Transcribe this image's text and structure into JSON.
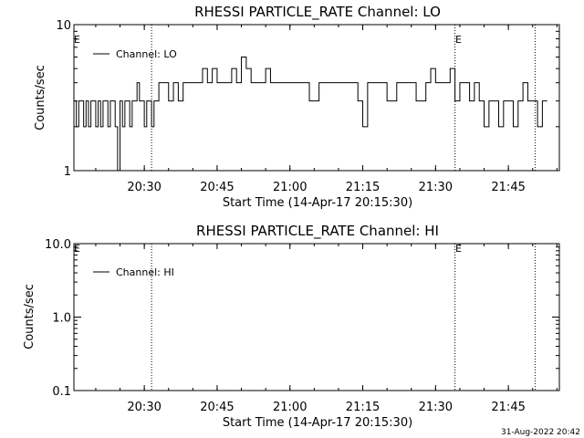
{
  "footer_date": "31-Aug-2022 20:42",
  "chart_data": [
    {
      "type": "line",
      "title": "RHESSI PARTICLE_RATE Channel: LO",
      "xlabel": "Start Time (14-Apr-17 20:15:30)",
      "ylabel": "Counts/sec",
      "y_scale": "log",
      "ylim": [
        1,
        10
      ],
      "y_ticks": [
        "1",
        "10"
      ],
      "xlim": [
        "20:15:30",
        "21:55:30"
      ],
      "x_ticks": [
        "20:30",
        "20:45",
        "21:00",
        "21:15",
        "21:30",
        "21:45"
      ],
      "grid": false,
      "legend": "top-left",
      "series": [
        {
          "name": "Channel: LO",
          "x": [
            "20:15:30",
            "20:16:00",
            "20:16:30",
            "20:17:00",
            "20:17:30",
            "20:18:00",
            "20:18:30",
            "20:19:00",
            "20:19:30",
            "20:20:00",
            "20:20:30",
            "20:21:00",
            "20:21:30",
            "20:22:00",
            "20:22:30",
            "20:23:00",
            "20:23:30",
            "20:24:00",
            "20:24:30",
            "20:25:00",
            "20:25:30",
            "20:26:00",
            "20:26:30",
            "20:27:00",
            "20:27:30",
            "20:28:00",
            "20:28:30",
            "20:29:00",
            "20:29:30",
            "20:30:00",
            "20:30:30",
            "20:31:00",
            "20:31:30",
            "20:32:00",
            "20:33:00",
            "20:34:00",
            "20:35:00",
            "20:36:00",
            "20:37:00",
            "20:38:00",
            "20:39:00",
            "20:40:00",
            "20:41:00",
            "20:42:00",
            "20:43:00",
            "20:44:00",
            "20:45:00",
            "20:46:00",
            "20:47:00",
            "20:48:00",
            "20:49:00",
            "20:50:00",
            "20:51:00",
            "20:52:00",
            "20:53:00",
            "20:54:00",
            "20:55:00",
            "20:56:00",
            "20:57:00",
            "20:58:00",
            "21:00:00",
            "21:02:00",
            "21:04:00",
            "21:06:00",
            "21:08:00",
            "21:10:00",
            "21:12:00",
            "21:14:00",
            "21:15:00",
            "21:16:00",
            "21:18:00",
            "21:20:00",
            "21:22:00",
            "21:24:00",
            "21:26:00",
            "21:28:00",
            "21:29:00",
            "21:30:00",
            "21:31:00",
            "21:32:00",
            "21:33:00",
            "21:34:00",
            "21:35:00",
            "21:36:00",
            "21:37:00",
            "21:38:00",
            "21:39:00",
            "21:40:00",
            "21:41:00",
            "21:42:00",
            "21:43:00",
            "21:44:00",
            "21:45:00",
            "21:46:00",
            "21:47:00",
            "21:48:00",
            "21:49:00",
            "21:50:00",
            "21:51:00",
            "21:52:00",
            "21:53:00"
          ],
          "y": [
            3,
            2,
            3,
            3,
            2,
            3,
            2,
            3,
            3,
            2,
            3,
            2,
            3,
            3,
            2,
            3,
            3,
            2,
            1,
            3,
            2,
            3,
            3,
            2,
            3,
            3,
            4,
            3,
            3,
            2,
            3,
            3,
            2,
            3,
            4,
            4,
            3,
            4,
            3,
            4,
            4,
            4,
            4,
            5,
            4,
            5,
            4,
            4,
            4,
            5,
            4,
            6,
            5,
            4,
            4,
            4,
            5,
            4,
            4,
            4,
            4,
            4,
            3,
            4,
            4,
            4,
            4,
            3,
            2,
            4,
            4,
            3,
            4,
            4,
            3,
            4,
            5,
            4,
            4,
            4,
            5,
            3,
            4,
            4,
            3,
            4,
            3,
            2,
            3,
            3,
            2,
            3,
            3,
            2,
            3,
            4,
            3,
            3,
            2,
            3,
            3
          ]
        }
      ],
      "annotations": [
        "E",
        "E"
      ]
    },
    {
      "type": "line",
      "title": "RHESSI PARTICLE_RATE Channel: HI",
      "xlabel": "Start Time (14-Apr-17 20:15:30)",
      "ylabel": "Counts/sec",
      "y_scale": "log",
      "ylim": [
        0.1,
        10
      ],
      "y_ticks": [
        "0.1",
        "1.0",
        "10.0"
      ],
      "xlim": [
        "20:15:30",
        "21:55:30"
      ],
      "x_ticks": [
        "20:30",
        "20:45",
        "21:00",
        "21:15",
        "21:30",
        "21:45"
      ],
      "grid": false,
      "legend": "top-left",
      "series": [
        {
          "name": "Channel: HI",
          "x": [],
          "y": []
        }
      ],
      "annotations": [
        "E",
        "E"
      ]
    }
  ],
  "vertical_markers": [
    "20:31:30",
    "21:34:00",
    "21:50:30"
  ]
}
